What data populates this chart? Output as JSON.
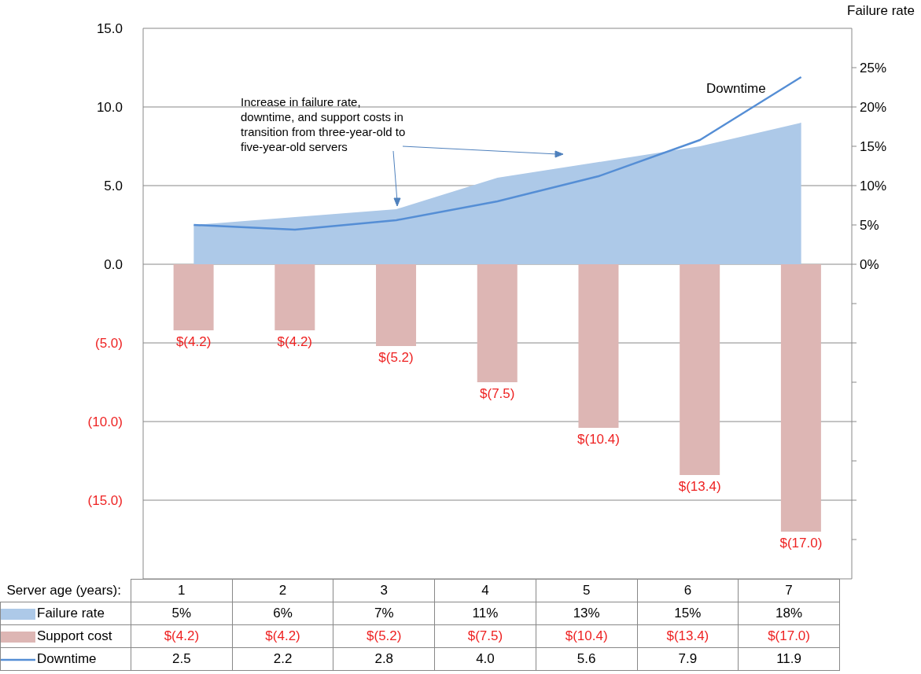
{
  "chart_data": {
    "type": "bar",
    "xlabel": "Server age (years):",
    "y2label": "Failure rate",
    "categories": [
      "1",
      "2",
      "3",
      "4",
      "5",
      "6",
      "7"
    ],
    "series": [
      {
        "name": "Failure rate",
        "type": "area",
        "axis": "y2",
        "color": "#adc9e8",
        "values": [
          5,
          6,
          7,
          11,
          13,
          15,
          18
        ],
        "value_labels": [
          "5%",
          "6%",
          "7%",
          "11%",
          "13%",
          "15%",
          "18%"
        ]
      },
      {
        "name": "Support cost",
        "color": "#ddb6b4",
        "values": [
          -4.2,
          -4.2,
          -5.2,
          -7.5,
          -10.4,
          -13.4,
          -17.0
        ],
        "value_labels": [
          "$(4.2)",
          "$(4.2)",
          "$(5.2)",
          "$(7.5)",
          "$(10.4)",
          "$(13.4)",
          "$(17.0)"
        ]
      },
      {
        "name": "Downtime",
        "type": "line",
        "color": "#558ed5",
        "values": [
          2.5,
          2.2,
          2.8,
          4.0,
          5.6,
          7.9,
          11.9
        ],
        "value_labels": [
          "2.5",
          "2.2",
          "2.8",
          "4.0",
          "5.6",
          "7.9",
          "11.9"
        ]
      }
    ],
    "ylim": [
      -20,
      15
    ],
    "yticks": [
      {
        "value": 15,
        "label": "15.0"
      },
      {
        "value": 10,
        "label": "10.0"
      },
      {
        "value": 5,
        "label": "5.0"
      },
      {
        "value": 0,
        "label": "0.0"
      },
      {
        "value": -5,
        "label": "(5.0)"
      },
      {
        "value": -10,
        "label": "(10.0)"
      },
      {
        "value": -15,
        "label": "(15.0)"
      }
    ],
    "y2lim": [
      -40,
      30
    ],
    "y2ticks": [
      {
        "value": 25,
        "label": "25%"
      },
      {
        "value": 20,
        "label": "20%"
      },
      {
        "value": 15,
        "label": "15%"
      },
      {
        "value": 10,
        "label": "10%"
      },
      {
        "value": 5,
        "label": "5%"
      },
      {
        "value": 0,
        "label": "0%"
      },
      {
        "value": -5,
        "label": null
      },
      {
        "value": -10,
        "label": null
      },
      {
        "value": -15,
        "label": null
      },
      {
        "value": -20,
        "label": null
      },
      {
        "value": -25,
        "label": null
      },
      {
        "value": -30,
        "label": null
      },
      {
        "value": -35,
        "label": null
      }
    ],
    "grid": "y",
    "legend": "bottom",
    "marker": "none",
    "line_style": "solid",
    "annotations": [
      "Increase in failure rate, downtime, and support costs in transition from three-year-old to five-year-old servers"
    ]
  }
}
